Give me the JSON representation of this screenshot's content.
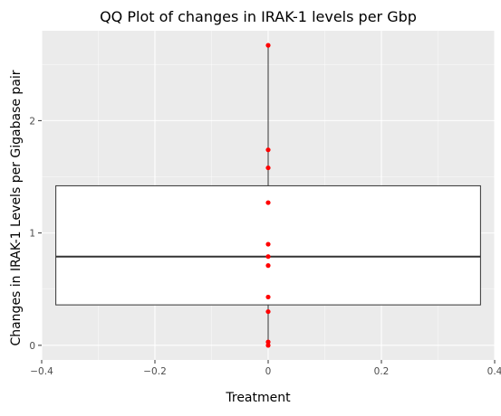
{
  "chart_data": {
    "type": "boxplot",
    "title": "QQ Plot of changes in IRAK-1 levels per Gbp",
    "xlabel": "Treatment",
    "ylabel": "Changes in  IRAK-1 Levels per Gigabase pair",
    "xlim": [
      -0.4,
      0.4
    ],
    "ylim": [
      -0.13,
      2.8
    ],
    "x_ticks": [
      -0.4,
      -0.2,
      0,
      0.2,
      0.4
    ],
    "x_tick_labels": [
      "−0.4",
      "−0.2",
      "0",
      "0.2",
      "0.4"
    ],
    "y_ticks": [
      0,
      1,
      2
    ],
    "y_tick_labels": [
      "0",
      "1",
      "2"
    ],
    "grid": true,
    "box": {
      "x_left": -0.375,
      "x_right": 0.375,
      "x": 0,
      "whisker_low": 0.0,
      "q1": 0.36,
      "median": 0.79,
      "q3": 1.42,
      "whisker_high": 2.67
    },
    "points": [
      {
        "x": 0,
        "y": 2.67
      },
      {
        "x": 0,
        "y": 1.74
      },
      {
        "x": 0,
        "y": 1.58
      },
      {
        "x": 0,
        "y": 1.27
      },
      {
        "x": 0,
        "y": 0.9
      },
      {
        "x": 0,
        "y": 0.79
      },
      {
        "x": 0,
        "y": 0.71
      },
      {
        "x": 0,
        "y": 0.43
      },
      {
        "x": 0,
        "y": 0.3
      },
      {
        "x": 0,
        "y": 0.03
      },
      {
        "x": 0,
        "y": 0.0
      }
    ],
    "colors": {
      "panel": "#ebebeb",
      "grid_major": "#ffffff",
      "box_fill": "#ffffff",
      "box_stroke": "#333333",
      "point": "#ff0000"
    }
  }
}
